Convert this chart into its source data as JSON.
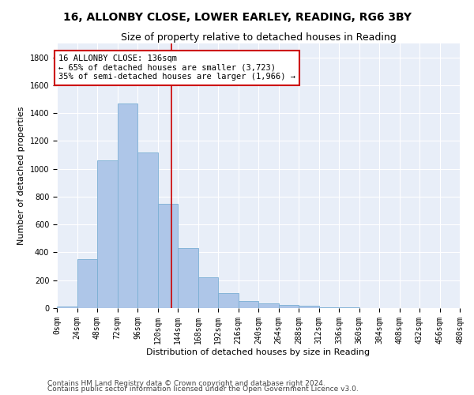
{
  "title": "16, ALLONBY CLOSE, LOWER EARLEY, READING, RG6 3BY",
  "subtitle": "Size of property relative to detached houses in Reading",
  "xlabel": "Distribution of detached houses by size in Reading",
  "ylabel": "Number of detached properties",
  "footnote1": "Contains HM Land Registry data © Crown copyright and database right 2024.",
  "footnote2": "Contains public sector information licensed under the Open Government Licence v3.0.",
  "annotation_line1": "16 ALLONBY CLOSE: 136sqm",
  "annotation_line2": "← 65% of detached houses are smaller (3,723)",
  "annotation_line3": "35% of semi-detached houses are larger (1,966) →",
  "property_size": 136,
  "bar_edges": [
    0,
    24,
    48,
    72,
    96,
    120,
    144,
    168,
    192,
    216,
    240,
    264,
    288,
    312,
    336,
    360,
    384,
    408,
    432,
    456,
    480
  ],
  "bar_heights": [
    10,
    350,
    1060,
    1470,
    1120,
    750,
    430,
    220,
    105,
    50,
    35,
    20,
    15,
    5,
    3,
    2,
    1,
    0,
    0,
    0
  ],
  "bar_color": "#aec6e8",
  "bar_edge_color": "#7aafd4",
  "vline_color": "#cc0000",
  "vline_x": 136,
  "ylim": [
    0,
    1900
  ],
  "yticks": [
    0,
    200,
    400,
    600,
    800,
    1000,
    1200,
    1400,
    1600,
    1800
  ],
  "xlim": [
    0,
    480
  ],
  "background_color": "#e8eef8",
  "annotation_box_color": "#ffffff",
  "annotation_box_edge": "#cc0000",
  "title_fontsize": 10,
  "subtitle_fontsize": 9,
  "axis_label_fontsize": 8,
  "tick_fontsize": 7,
  "annotation_fontsize": 7.5,
  "footnote_fontsize": 6.5
}
